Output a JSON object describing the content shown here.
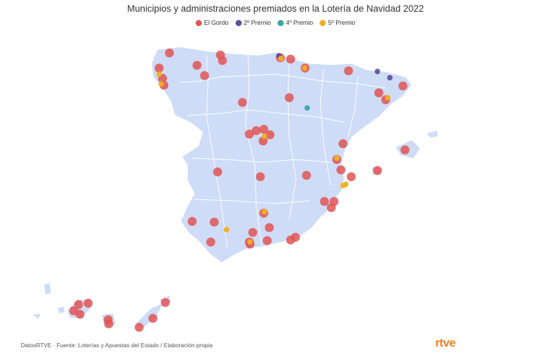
{
  "title": "Municipios y administraciones premiados en la Lotería de Navidad 2022",
  "legend": [
    {
      "label": "El Gordo",
      "color": "#e05555"
    },
    {
      "label": "2º Premio",
      "color": "#5b4f9e"
    },
    {
      "label": "4º Premio",
      "color": "#3aa6a6"
    },
    {
      "label": "5º Premio",
      "color": "#f0b020"
    }
  ],
  "colors": {
    "land": "#cfdcf7",
    "border": "#ffffff",
    "el_gordo": "#e05555",
    "segundo": "#5b4f9e",
    "cuarto": "#3aa6a6",
    "quinto": "#f0b020"
  },
  "footer": {
    "source": "DatosRTVE · Fuente: Loterías y Apuestas del Estado / Elaboración propia",
    "logo_text": "rtve"
  }
}
